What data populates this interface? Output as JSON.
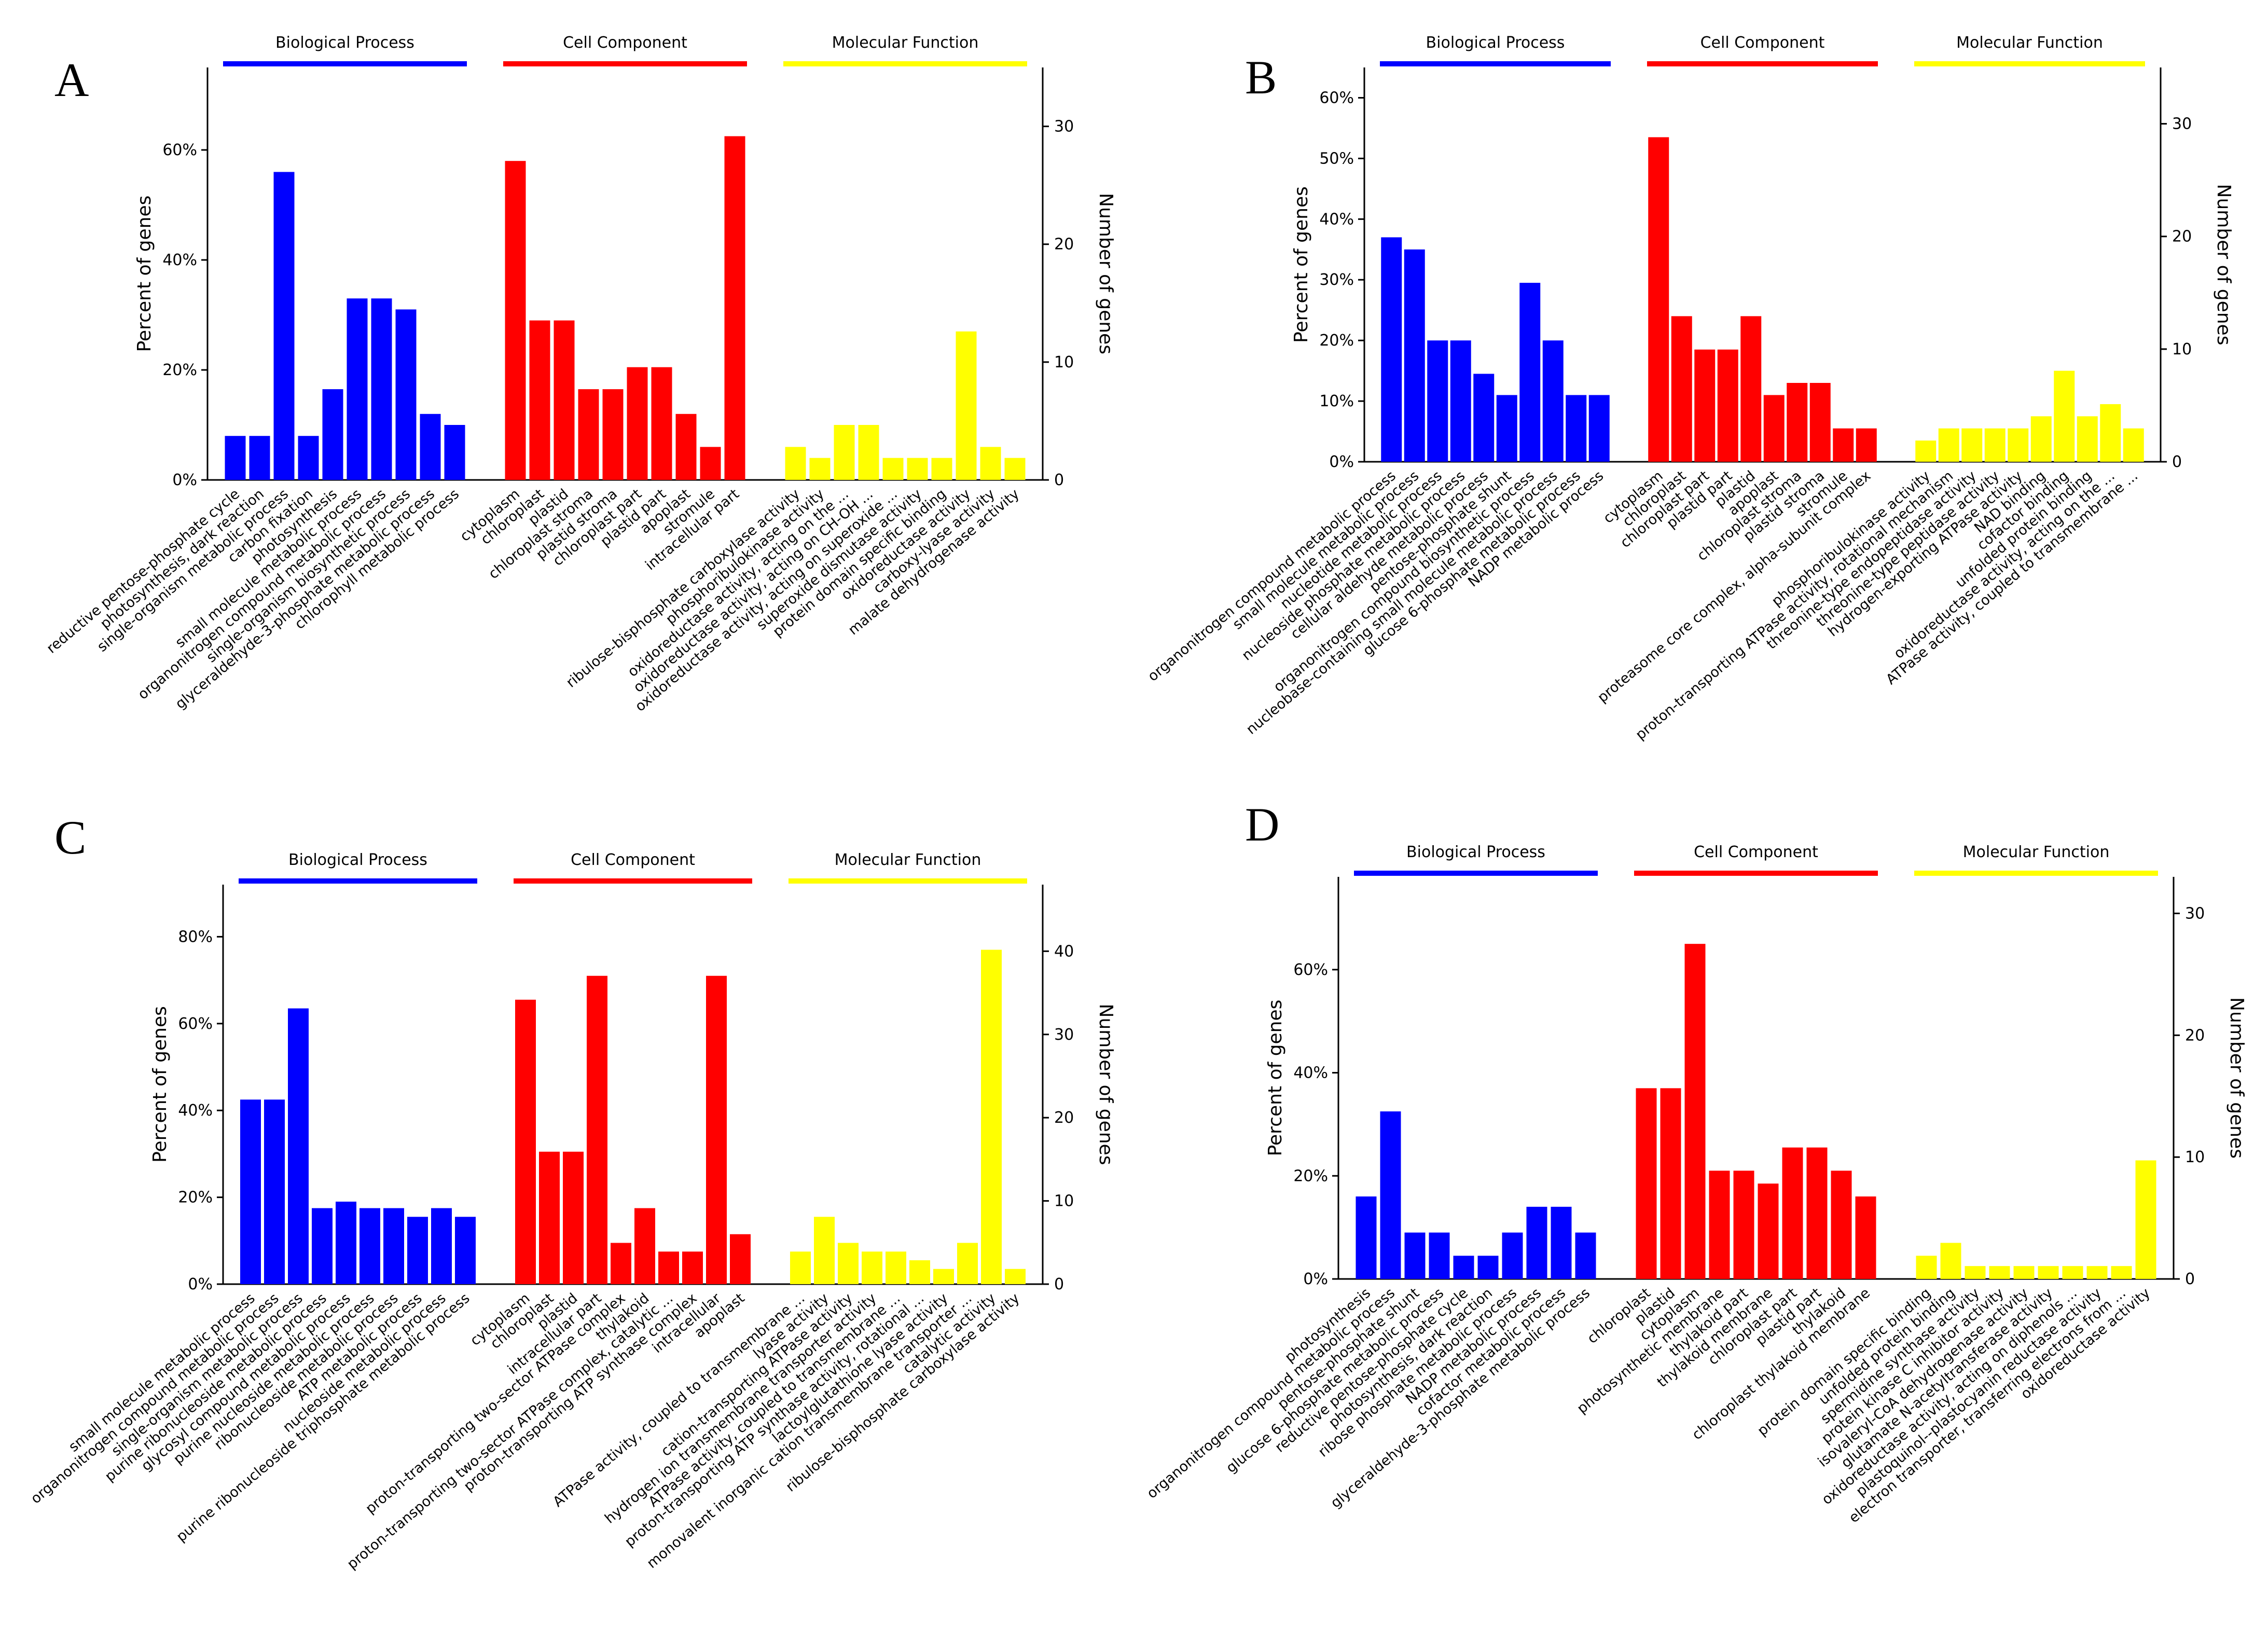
{
  "colors": {
    "biological_process": "#0000ff",
    "cell_component": "#ff0000",
    "molecular_function": "#ffff00"
  },
  "chart_data": [
    {
      "panel": "A",
      "type": "bar",
      "group_labels": [
        "Biological Process",
        "Cell Component",
        "Molecular Function"
      ],
      "ylabel_left": "Percent of genes",
      "ylabel_right": "Number of genes",
      "yticks_left": [
        "0%",
        "20%",
        "40%",
        "60%"
      ],
      "yticks_right": [
        "0",
        "10",
        "20",
        "30"
      ],
      "ylim_percent": [
        0,
        75
      ],
      "ylim_count": [
        0,
        35
      ],
      "groups": [
        {
          "name": "Biological Process",
          "color": "#0000ff",
          "categories": [
            "reductive pentose-phosphate cycle",
            "photosynthesis, dark reaction",
            "single-organism metabolic process",
            "carbon fixation",
            "photosynthesis",
            "small molecule metabolic process",
            "organonitrogen compound metabolic process",
            "single-organism biosynthetic process",
            "glyceraldehyde-3-phosphate metabolic process",
            "chlorophyll metabolic process"
          ],
          "values": [
            8,
            8,
            56,
            8,
            16.5,
            33,
            33,
            31,
            12,
            10
          ]
        },
        {
          "name": "Cell Component",
          "color": "#ff0000",
          "categories": [
            "cytoplasm",
            "chloroplast",
            "plastid",
            "chloroplast stroma",
            "plastid stroma",
            "chloroplast part",
            "plastid part",
            "apoplast",
            "stromule",
            "intracellular part"
          ],
          "values": [
            58,
            29,
            29,
            16.5,
            16.5,
            20.5,
            20.5,
            12,
            6,
            62.5
          ]
        },
        {
          "name": "Molecular Function",
          "color": "#ffff00",
          "categories": [
            "ribulose-bisphosphate carboxylase activity",
            "phosphoribulokinase activity",
            "oxidoreductase activity, acting on the ...",
            "oxidoreductase activity, acting on CH-OH ...",
            "oxidoreductase activity, acting on superoxide ...",
            "superoxide dismutase activity",
            "protein domain specific binding",
            "oxidoreductase activity",
            "carboxy-lyase activity",
            "malate dehydrogenase activity"
          ],
          "values": [
            6,
            4,
            10,
            10,
            4,
            4,
            4,
            27,
            6,
            4
          ]
        }
      ]
    },
    {
      "panel": "B",
      "type": "bar",
      "group_labels": [
        "Biological Process",
        "Cell Component",
        "Molecular Function"
      ],
      "ylabel_left": "Percent of genes",
      "ylabel_right": "Number of genes",
      "yticks_left": [
        "0%",
        "10%",
        "20%",
        "30%",
        "40%",
        "50%",
        "60%"
      ],
      "yticks_right": [
        "0",
        "10",
        "20",
        "30"
      ],
      "ylim_percent": [
        0,
        65
      ],
      "ylim_count": [
        0,
        35
      ],
      "groups": [
        {
          "name": "Biological Process",
          "color": "#0000ff",
          "categories": [
            "organonitrogen compound metabolic process",
            "small molecule metabolic process",
            "nucleotide metabolic process",
            "nucleoside phosphate metabolic process",
            "cellular aldehyde metabolic process",
            "pentose-phosphate shunt",
            "organonitrogen compound biosynthetic process",
            "nucleobase-containing small molecule metabolic process",
            "glucose 6-phosphate metabolic process",
            "NADP metabolic process"
          ],
          "values": [
            37,
            35,
            20,
            20,
            14.5,
            11,
            29.5,
            20,
            11,
            11
          ]
        },
        {
          "name": "Cell Component",
          "color": "#ff0000",
          "categories": [
            "cytoplasm",
            "chloroplast",
            "chloroplast part",
            "plastid part",
            "plastid",
            "apoplast",
            "chloroplast stroma",
            "plastid stroma",
            "stromule",
            "proteasome core complex, alpha-subunit complex"
          ],
          "values": [
            53.5,
            24,
            18.5,
            18.5,
            24,
            11,
            13,
            13,
            5.5,
            5.5
          ]
        },
        {
          "name": "Molecular Function",
          "color": "#ffff00",
          "categories": [
            "phosphoribulokinase activity",
            "proton-transporting ATPase activity, rotational mechanism",
            "threonine-type endopeptidase activity",
            "threonine-type peptidase activity",
            "hydrogen-exporting ATPase activity",
            "NAD binding",
            "cofactor binding",
            "unfolded protein binding",
            "oxidoreductase activity, acting on the ...",
            "ATPase activity, coupled to transmembrane ..."
          ],
          "values": [
            3.5,
            5.5,
            5.5,
            5.5,
            5.5,
            7.5,
            15,
            7.5,
            9.5,
            5.5
          ]
        }
      ]
    },
    {
      "panel": "C",
      "type": "bar",
      "group_labels": [
        "Biological Process",
        "Cell Component",
        "Molecular Function"
      ],
      "ylabel_left": "Percent of genes",
      "ylabel_right": "Number of genes",
      "yticks_left": [
        "0%",
        "20%",
        "40%",
        "60%",
        "80%"
      ],
      "yticks_right": [
        "0",
        "10",
        "20",
        "30",
        "40"
      ],
      "ylim_percent": [
        0,
        92
      ],
      "ylim_count": [
        0,
        48
      ],
      "groups": [
        {
          "name": "Biological Process",
          "color": "#0000ff",
          "categories": [
            "small molecule metabolic process",
            "organonitrogen compound metabolic process",
            "single-organism metabolic process",
            "purine ribonucleoside metabolic process",
            "glycosyl compound metabolic process",
            "purine nucleoside metabolic process",
            "ribonucleoside metabolic process",
            "ATP metabolic process",
            "nucleoside metabolic process",
            "purine ribonucleoside triphosphate metabolic process"
          ],
          "values": [
            42.5,
            42.5,
            63.5,
            17.5,
            19,
            17.5,
            17.5,
            15.5,
            17.5,
            15.5
          ]
        },
        {
          "name": "Cell Component",
          "color": "#ff0000",
          "categories": [
            "cytoplasm",
            "chloroplast",
            "plastid",
            "intracellular part",
            "proton-transporting two-sector ATPase complex",
            "thylakoid",
            "proton-transporting two-sector ATPase complex, catalytic ...",
            "proton-transporting ATP synthase complex",
            "intracellular",
            "apoplast"
          ],
          "values": [
            65.5,
            30.5,
            30.5,
            71,
            9.5,
            17.5,
            7.5,
            7.5,
            71,
            11.5
          ]
        },
        {
          "name": "Molecular Function",
          "color": "#ffff00",
          "categories": [
            "ATPase activity, coupled to transmembrane ...",
            "lyase activity",
            "cation-transporting ATPase activity",
            "hydrogen ion transmembrane transporter activity",
            "ATPase activity, coupled to transmembrane ...",
            "proton-transporting ATP synthase activity, rotational ...",
            "lactoylglutathione lyase activity",
            "monovalent inorganic cation transmembrane transporter ...",
            "catalytic activity",
            "ribulose-bisphosphate carboxylase activity"
          ],
          "values": [
            7.5,
            15.5,
            9.5,
            7.5,
            7.5,
            5.5,
            3.5,
            9.5,
            77,
            3.5
          ]
        }
      ]
    },
    {
      "panel": "D",
      "type": "bar",
      "group_labels": [
        "Biological Process",
        "Cell Component",
        "Molecular Function"
      ],
      "ylabel_left": "Percent of genes",
      "ylabel_right": "Number of genes",
      "yticks_left": [
        "0%",
        "20%",
        "40%",
        "60%"
      ],
      "yticks_right": [
        "0",
        "10",
        "20",
        "30"
      ],
      "ylim_percent": [
        0,
        78
      ],
      "ylim_count": [
        0,
        33
      ],
      "groups": [
        {
          "name": "Biological Process",
          "color": "#0000ff",
          "categories": [
            "photosynthesis",
            "organonitrogen compound metabolic process",
            "pentose-phosphate shunt",
            "glucose 6-phosphate metabolic process",
            "reductive pentose-phosphate cycle",
            "photosynthesis, dark reaction",
            "ribose phosphate metabolic process",
            "NADP metabolic process",
            "cofactor metabolic process",
            "glyceraldehyde-3-phosphate metabolic process"
          ],
          "values": [
            16,
            32.5,
            9,
            9,
            4.5,
            4.5,
            9,
            14,
            14,
            9
          ]
        },
        {
          "name": "Cell Component",
          "color": "#ff0000",
          "categories": [
            "chloroplast",
            "plastid",
            "cytoplasm",
            "photosynthetic membrane",
            "thylakoid part",
            "thylakoid membrane",
            "chloroplast part",
            "plastid part",
            "thylakoid",
            "chloroplast thylakoid membrane"
          ],
          "values": [
            37,
            37,
            65,
            21,
            21,
            18.5,
            25.5,
            25.5,
            21,
            16
          ]
        },
        {
          "name": "Molecular Function",
          "color": "#ffff00",
          "categories": [
            "protein domain specific binding",
            "unfolded protein binding",
            "spermidine synthase activity",
            "protein kinase C inhibitor activity",
            "isovaleryl-CoA dehydrogenase activity",
            "glutamate N-acetyltransferase activity",
            "oxidoreductase activity, acting on diphenols ...",
            "plastoquinol--plastocyanin reductase activity",
            "electron transporter, transferring electrons from ...",
            "oxidoreductase activity"
          ],
          "values": [
            4.5,
            7,
            2.5,
            2.5,
            2.5,
            2.5,
            2.5,
            2.5,
            2.5,
            23
          ]
        }
      ]
    }
  ]
}
